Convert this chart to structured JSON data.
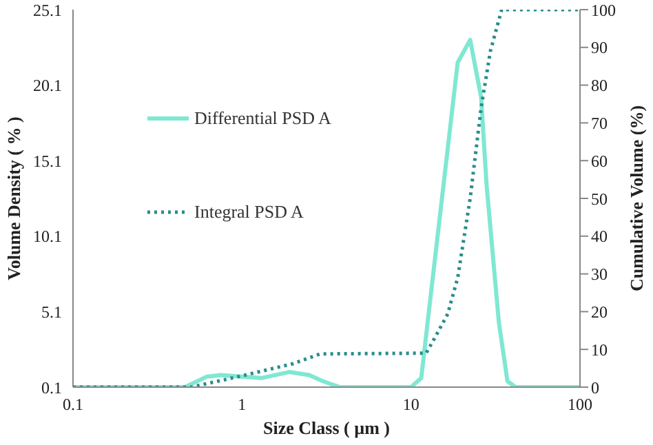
{
  "chart_data": {
    "type": "line",
    "xlabel": "Size Class ( µm )",
    "ylabel": "Volume Density ( % )",
    "y2label": "Cumulative Volume (%)",
    "log": "x",
    "xlim": [
      0.1,
      100
    ],
    "xticks": [
      0.1,
      1,
      10,
      100
    ],
    "ylim": [
      0.1,
      25.1
    ],
    "yticks": [
      0.1,
      5.1,
      10.1,
      15.1,
      20.1,
      25.1
    ],
    "y2lim": [
      0,
      100
    ],
    "y2ticks": [
      0,
      10,
      20,
      30,
      40,
      50,
      60,
      70,
      80,
      90,
      100
    ],
    "legend": "left",
    "series": [
      {
        "name": "Differential PSD A",
        "color": "#7fe8d2",
        "line_style": "solid",
        "x": [
          0.1,
          0.46,
          0.62,
          0.75,
          1,
          1.3,
          1.9,
          2.5,
          3,
          3.8,
          10,
          11.5,
          13,
          16.3,
          18.9,
          22.4,
          26,
          28,
          33.1,
          37.2,
          41.5,
          100
        ],
        "values": [
          0.1,
          0.1,
          0.8,
          0.9,
          0.8,
          0.7,
          1.1,
          0.9,
          0.5,
          0.1,
          0.1,
          0.7,
          5.9,
          15.4,
          21.6,
          23.1,
          19.3,
          13.5,
          4.4,
          0.5,
          0.1,
          0.1
        ]
      },
      {
        "name": "Integral PSD A",
        "color": "#2a8c8c",
        "line_style": "dotted",
        "axis": "y2",
        "x": [
          0.1,
          0.5,
          1,
          2,
          2.9,
          12.3,
          14,
          16.5,
          18.9,
          22.4,
          26,
          29.5,
          34.4,
          100
        ],
        "values": [
          0,
          0,
          3,
          6.2,
          8.8,
          9,
          13.5,
          19.4,
          29,
          50,
          74,
          89,
          100,
          100
        ]
      }
    ]
  }
}
